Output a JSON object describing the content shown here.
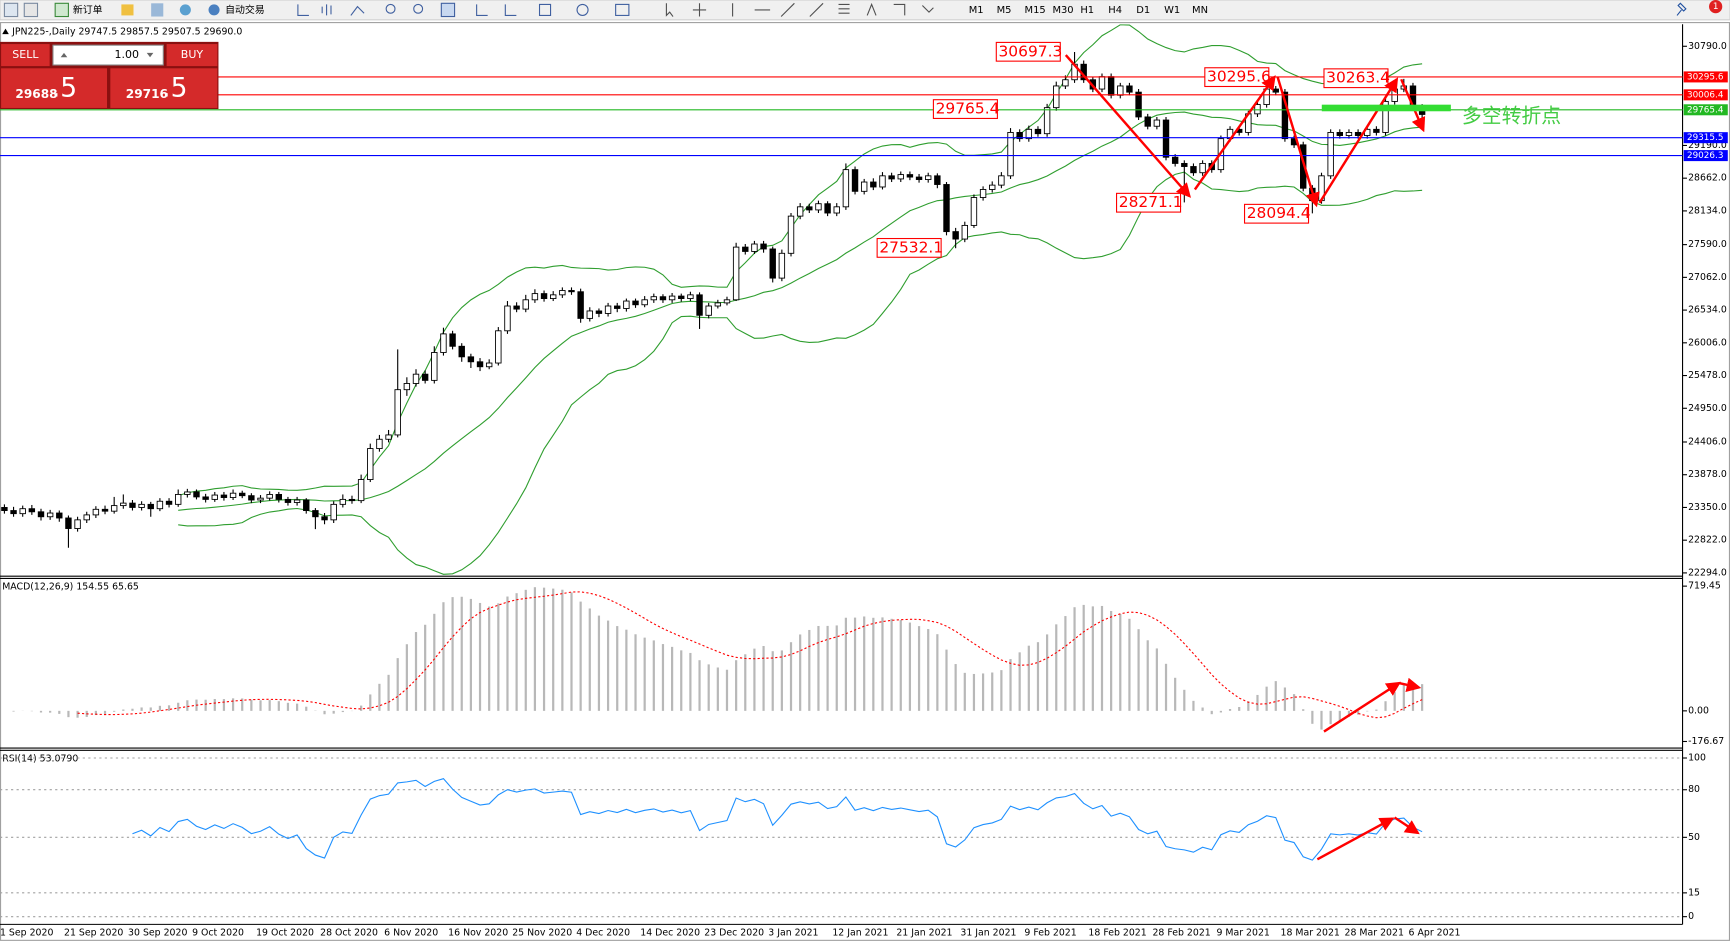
{
  "toolbar": {
    "new_order": "新订单",
    "auto_trading": "自动交易",
    "timeframes": [
      "M1",
      "M5",
      "M15",
      "M30",
      "H1",
      "H4",
      "D1",
      "W1",
      "MN"
    ],
    "notification": "1"
  },
  "trade_panel": {
    "sell": "SELL",
    "lot": "1.00",
    "buy": "BUY",
    "sell_big": "29688",
    "sell_small": ".5",
    "buy_big": "29716",
    "buy_small": ".5"
  },
  "chart_data": [
    {
      "type": "candlestick",
      "title": "JPN225-,Daily  29747.5 29857.5 29507.5 29690.0",
      "annotation": "多空转折点",
      "annotation_color": "#44cc44",
      "categories": [
        "1 Sep 2020",
        null,
        null,
        null,
        null,
        null,
        null,
        "21 Sep 2020",
        null,
        null,
        null,
        null,
        null,
        null,
        "30 Sep 2020",
        null,
        null,
        null,
        null,
        null,
        null,
        "9 Oct 2020",
        null,
        null,
        null,
        null,
        null,
        null,
        "19 Oct 2020",
        null,
        null,
        null,
        null,
        null,
        null,
        "28 Oct 2020",
        null,
        null,
        null,
        null,
        null,
        null,
        "6 Nov 2020",
        null,
        null,
        null,
        null,
        null,
        null,
        "16 Nov 2020",
        null,
        null,
        null,
        null,
        null,
        null,
        "25 Nov 2020",
        null,
        null,
        null,
        null,
        null,
        null,
        "4 Dec 2020",
        null,
        null,
        null,
        null,
        null,
        null,
        "14 Dec 2020",
        null,
        null,
        null,
        null,
        null,
        null,
        "23 Dec 2020",
        null,
        null,
        null,
        null,
        null,
        null,
        "3 Jan 2021",
        null,
        null,
        null,
        null,
        null,
        null,
        "12 Jan 2021",
        null,
        null,
        null,
        null,
        null,
        null,
        "21 Jan 2021",
        null,
        null,
        null,
        null,
        null,
        null,
        "31 Jan 2021",
        null,
        null,
        null,
        null,
        null,
        null,
        "9 Feb 2021",
        null,
        null,
        null,
        null,
        null,
        null,
        "18 Feb 2021",
        null,
        null,
        null,
        null,
        null,
        null,
        "28 Feb 2021",
        null,
        null,
        null,
        null,
        null,
        null,
        "9 Mar 2021",
        null,
        null,
        null,
        null,
        null,
        null,
        "18 Mar 2021",
        null,
        null,
        null,
        null,
        null,
        null,
        "28 Mar 2021",
        null,
        null,
        null,
        null,
        null,
        null,
        "6 Apr 2021",
        null
      ],
      "open": [
        23350,
        23300,
        23250,
        23330,
        23280,
        23200,
        23260,
        23180,
        23010,
        23150,
        23230,
        23320,
        23290,
        23380,
        23420,
        23350,
        23400,
        23330,
        23450,
        23400,
        23560,
        23600,
        23520,
        23480,
        23550,
        23510,
        23580,
        23540,
        23470,
        23500,
        23560,
        23480,
        23430,
        23470,
        23300,
        23200,
        23150,
        23400,
        23480,
        23460,
        23800,
        24300,
        24450,
        24520,
        25250,
        25350,
        25500,
        25400,
        25850,
        26150,
        25950,
        25780,
        25700,
        25620,
        25680,
        26200,
        26600,
        26550,
        26700,
        26800,
        26720,
        26780,
        26850,
        26830,
        26400,
        26520,
        26480,
        26600,
        26560,
        26680,
        26620,
        26700,
        26750,
        26700,
        26760,
        26720,
        26780,
        26450,
        26600,
        26650,
        26700,
        27550,
        27480,
        27600,
        27520,
        27050,
        27450,
        28050,
        28200,
        28150,
        28250,
        28100,
        28200,
        28800,
        28450,
        28600,
        28520,
        28700,
        28650,
        28720,
        28680,
        28640,
        28700,
        28560,
        27800,
        27680,
        27900,
        28350,
        28480,
        28550,
        28700,
        29400,
        29300,
        29450,
        29380,
        29800,
        30150,
        30250,
        30500,
        30250,
        30100,
        30300,
        30000,
        30150,
        30050,
        29650,
        29500,
        29600,
        29000,
        28900,
        28850,
        28750,
        28900,
        28800,
        29300,
        29450,
        29400,
        29700,
        29850,
        30100,
        30050,
        29300,
        29200,
        28500,
        28300,
        28700,
        29400,
        29350,
        29400,
        29350,
        29450,
        29400,
        29900,
        30100,
        30150,
        29747.5
      ],
      "high": [
        23400,
        23360,
        23380,
        23390,
        23330,
        23310,
        23300,
        23220,
        23200,
        23280,
        23370,
        23380,
        23520,
        23560,
        23470,
        23450,
        23440,
        23500,
        23500,
        23640,
        23650,
        23640,
        23570,
        23600,
        23600,
        23640,
        23620,
        23580,
        23550,
        23610,
        23600,
        23520,
        23520,
        23500,
        23340,
        23260,
        23450,
        23560,
        23540,
        23880,
        24380,
        24520,
        24600,
        25900,
        25450,
        25580,
        25560,
        25950,
        26250,
        26200,
        26000,
        25830,
        25760,
        25740,
        26260,
        26680,
        26660,
        26780,
        26870,
        26850,
        26840,
        26900,
        26900,
        26880,
        26580,
        26560,
        26650,
        26650,
        26720,
        26720,
        26760,
        26800,
        26790,
        26810,
        26800,
        26830,
        26820,
        26650,
        26700,
        26750,
        27620,
        27600,
        27650,
        27650,
        27560,
        27510,
        28100,
        28260,
        28250,
        28300,
        28290,
        28260,
        28900,
        28850,
        28650,
        28660,
        28760,
        28750,
        28770,
        28770,
        28730,
        28750,
        28740,
        28600,
        27860,
        27960,
        28400,
        28530,
        28610,
        28760,
        29470,
        29450,
        29510,
        29500,
        29860,
        30220,
        30320,
        30697.3,
        30560,
        30300,
        30350,
        30350,
        30200,
        30200,
        30100,
        29700,
        29650,
        29650,
        29050,
        28950,
        28900,
        28950,
        28950,
        29350,
        29500,
        29500,
        29750,
        29900,
        30295.6,
        30150,
        30100,
        29350,
        29250,
        28550,
        28750,
        29450,
        29450,
        29450,
        29450,
        29500,
        29500,
        29950,
        30150,
        30263.4,
        30200,
        29857.5
      ],
      "low": [
        23250,
        23200,
        23200,
        23230,
        23140,
        23150,
        23120,
        22700,
        22960,
        23100,
        23180,
        23240,
        23250,
        23330,
        23300,
        23300,
        23200,
        23290,
        23350,
        23360,
        23510,
        23480,
        23430,
        23440,
        23460,
        23470,
        23500,
        23420,
        23420,
        23460,
        23430,
        23380,
        23380,
        23250,
        23000,
        23080,
        23100,
        23350,
        23410,
        23420,
        23760,
        24250,
        24400,
        24480,
        25150,
        25300,
        25350,
        25350,
        25800,
        25900,
        25700,
        25600,
        25550,
        25580,
        25640,
        26150,
        26500,
        26500,
        26650,
        26670,
        26680,
        26730,
        26780,
        26330,
        26350,
        26420,
        26430,
        26500,
        26510,
        26570,
        26580,
        26650,
        26650,
        26650,
        26670,
        26680,
        26230,
        26400,
        26560,
        26610,
        26680,
        27430,
        27440,
        27460,
        26980,
        27000,
        27400,
        28000,
        28100,
        28100,
        28050,
        28050,
        28150,
        28400,
        28400,
        28470,
        28480,
        28600,
        28600,
        28630,
        28590,
        28590,
        28500,
        27740,
        27532.1,
        27630,
        27860,
        28300,
        28430,
        28500,
        28650,
        29250,
        29250,
        29330,
        29330,
        29750,
        30100,
        30200,
        30200,
        30050,
        30050,
        29950,
        29950,
        30000,
        29600,
        29450,
        29450,
        28950,
        28850,
        28271.1,
        28700,
        28700,
        28750,
        28750,
        29250,
        29350,
        29350,
        29650,
        29800,
        30000,
        29250,
        29150,
        28450,
        28094.4,
        28250,
        28650,
        29300,
        29300,
        29300,
        29300,
        29350,
        29350,
        29850,
        30050,
        29800,
        29507.5
      ],
      "close": [
        23300,
        23250,
        23330,
        23280,
        23200,
        23260,
        23180,
        23010,
        23150,
        23230,
        23320,
        23290,
        23380,
        23420,
        23350,
        23400,
        23330,
        23450,
        23400,
        23560,
        23600,
        23520,
        23480,
        23550,
        23510,
        23580,
        23540,
        23470,
        23500,
        23560,
        23480,
        23430,
        23470,
        23300,
        23200,
        23150,
        23400,
        23480,
        23460,
        23800,
        24300,
        24450,
        24520,
        25250,
        25350,
        25500,
        25400,
        25850,
        26150,
        25950,
        25780,
        25700,
        25620,
        25680,
        26200,
        26600,
        26550,
        26700,
        26800,
        26720,
        26780,
        26850,
        26830,
        26400,
        26520,
        26480,
        26600,
        26560,
        26680,
        26620,
        26700,
        26750,
        26700,
        26760,
        26720,
        26780,
        26450,
        26600,
        26650,
        26700,
        27550,
        27480,
        27600,
        27520,
        27050,
        27450,
        28050,
        28200,
        28150,
        28250,
        28100,
        28200,
        28800,
        28450,
        28600,
        28520,
        28700,
        28650,
        28720,
        28680,
        28640,
        28700,
        28560,
        27800,
        27680,
        27900,
        28350,
        28480,
        28550,
        28700,
        29400,
        29300,
        29450,
        29380,
        29800,
        30150,
        30250,
        30500,
        30250,
        30100,
        30300,
        30000,
        30150,
        30050,
        29650,
        29500,
        29600,
        29000,
        28900,
        28850,
        28750,
        28900,
        28800,
        29300,
        29450,
        29400,
        29700,
        29850,
        30100,
        30050,
        29300,
        29200,
        28500,
        28300,
        28700,
        29400,
        29350,
        29400,
        29350,
        29450,
        29400,
        29900,
        30100,
        30150,
        29850,
        29690
      ],
      "bands_color": "#2f9e2f",
      "levels": [
        {
          "value": 30295.6,
          "color": "#ff0000"
        },
        {
          "value": 30006.4,
          "color": "#ff0000"
        },
        {
          "value": 29765.4,
          "color": "#22b822"
        },
        {
          "value": 29315.5,
          "color": "#0000ff"
        },
        {
          "value": 29026.3,
          "color": "#0000ff"
        }
      ],
      "ylim": [
        22294,
        30790
      ],
      "yticks": [
        {
          "value": 22294,
          "label": "22294.0"
        },
        {
          "value": 22822,
          "label": "22822.0"
        },
        {
          "value": 23350,
          "label": "23350.0"
        },
        {
          "value": 23878,
          "label": "23878.0"
        },
        {
          "value": 24406,
          "label": "24406.0"
        },
        {
          "value": 24950,
          "label": "24950.0"
        },
        {
          "value": 25478,
          "label": "25478.0"
        },
        {
          "value": 26006,
          "label": "26006.0"
        },
        {
          "value": 26534,
          "label": "26534.0"
        },
        {
          "value": 27062,
          "label": "27062.0"
        },
        {
          "value": 27590,
          "label": "27590.0"
        },
        {
          "value": 28134,
          "label": "28134.0"
        },
        {
          "value": 28662,
          "label": "28662.0"
        },
        {
          "value": 29190,
          "label": "29190.0"
        },
        {
          "value": 30790,
          "label": "30790.0"
        }
      ]
    },
    {
      "type": "macd",
      "title": "MACD(12,26,9) 154.55 65.65",
      "histogram_color": "#b8b8b8",
      "signal_color": "#ff0000",
      "ylim": [
        -176.67,
        719.45
      ],
      "yticks": [
        719.45,
        {
          "value": 0,
          "label": "0.00"
        },
        -176.67
      ]
    },
    {
      "type": "rsi",
      "title": "RSI(14) 53.0790",
      "color": "#1e90ff",
      "grid": true,
      "ylim": [
        0,
        100
      ],
      "yticks": [
        100,
        80,
        50,
        15,
        0
      ]
    }
  ]
}
